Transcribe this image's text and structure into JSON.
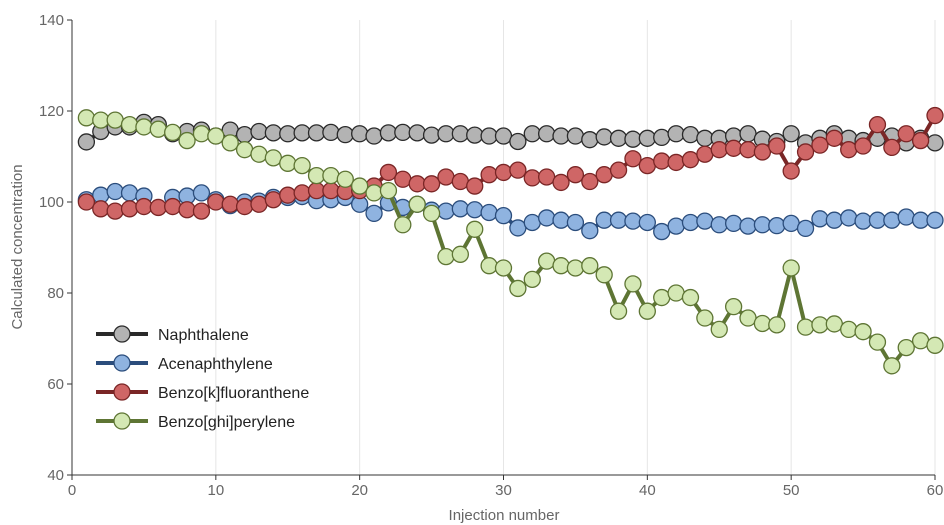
{
  "chart_data": {
    "type": "line",
    "title": "",
    "xlabel": "Injection number",
    "ylabel": "Calculated concentration",
    "xlim": [
      0,
      60
    ],
    "ylim": [
      40,
      140
    ],
    "x_ticks": [
      0,
      10,
      20,
      30,
      40,
      50,
      60
    ],
    "y_ticks": [
      40,
      60,
      80,
      100,
      120,
      140
    ],
    "grid": "vertical",
    "legend_position": "bottom-left",
    "x": [
      1,
      2,
      3,
      4,
      5,
      6,
      7,
      8,
      9,
      10,
      11,
      12,
      13,
      14,
      15,
      16,
      17,
      18,
      19,
      20,
      21,
      22,
      23,
      24,
      25,
      26,
      27,
      28,
      29,
      30,
      31,
      32,
      33,
      34,
      35,
      36,
      37,
      38,
      39,
      40,
      41,
      42,
      43,
      44,
      45,
      46,
      47,
      48,
      49,
      50,
      51,
      52,
      53,
      54,
      55,
      56,
      57,
      58,
      59,
      60
    ],
    "series": [
      {
        "name": "Naphthalene",
        "line_color": "#2a2a2a",
        "marker_fill": "#b3b3b3",
        "values": [
          113.2,
          115.5,
          116.5,
          116.5,
          117.5,
          117.0,
          115.0,
          115.5,
          115.8,
          114.5,
          115.8,
          114.8,
          115.5,
          115.2,
          115.0,
          115.2,
          115.2,
          115.3,
          114.8,
          115.0,
          114.5,
          115.2,
          115.3,
          115.2,
          114.7,
          115.0,
          115.0,
          114.7,
          114.5,
          114.5,
          113.3,
          115.0,
          115.0,
          114.5,
          114.5,
          113.7,
          114.3,
          114.0,
          113.8,
          114.0,
          114.2,
          115.0,
          114.8,
          114.0,
          114.0,
          114.5,
          115.0,
          113.8,
          113.3,
          115.0,
          113.0,
          114.0,
          115.0,
          114.0,
          113.5,
          114.0,
          114.5,
          113.0,
          114.0,
          113.0
        ]
      },
      {
        "name": "Acenaphthylene",
        "line_color": "#2b4d7c",
        "marker_fill": "#8fb3e0",
        "values": [
          100.5,
          101.5,
          102.3,
          102.0,
          101.3,
          null,
          101.0,
          101.3,
          102.0,
          100.5,
          99.2,
          100.0,
          100.2,
          101.0,
          101.0,
          101.2,
          100.3,
          100.5,
          101.0,
          99.5,
          97.5,
          99.8,
          98.8,
          99.5,
          98.2,
          98.0,
          98.5,
          98.3,
          97.7,
          97.0,
          94.3,
          95.5,
          96.5,
          96.0,
          95.5,
          93.7,
          96.0,
          96.0,
          95.8,
          95.5,
          93.5,
          94.7,
          95.5,
          95.8,
          95.0,
          95.3,
          94.7,
          95.0,
          94.8,
          95.3,
          94.2,
          96.3,
          96.0,
          96.5,
          95.8,
          96.0,
          96.0,
          96.7,
          96.0,
          96.0
        ]
      },
      {
        "name": "Benzo[k]fluoranthene",
        "line_color": "#7a2626",
        "marker_fill": "#cf6666",
        "values": [
          100.0,
          98.5,
          98.0,
          98.5,
          99.0,
          98.8,
          99.0,
          98.3,
          98.0,
          100.0,
          99.5,
          99.0,
          99.5,
          100.5,
          101.5,
          102.0,
          102.5,
          102.5,
          102.3,
          102.5,
          103.5,
          106.5,
          105.0,
          104.0,
          104.0,
          105.5,
          104.5,
          103.5,
          106.0,
          106.5,
          107.0,
          105.3,
          105.5,
          104.3,
          106.0,
          104.5,
          106.0,
          107.0,
          109.5,
          108.0,
          109.0,
          108.7,
          109.3,
          110.5,
          111.5,
          111.8,
          111.5,
          111.0,
          112.3,
          106.8,
          111.0,
          112.5,
          114.0,
          111.5,
          112.3,
          117.0,
          112.0,
          115.0,
          113.5,
          119.0
        ]
      },
      {
        "name": "Benzo[ghi]perylene",
        "line_color": "#5e7534",
        "marker_fill": "#d4e8b4",
        "values": [
          118.5,
          118.0,
          118.0,
          117.0,
          116.5,
          116.0,
          115.3,
          113.5,
          115.0,
          114.5,
          113.0,
          111.5,
          110.5,
          109.7,
          108.5,
          108.0,
          105.8,
          105.8,
          105.0,
          103.5,
          102.0,
          102.5,
          95.0,
          99.5,
          97.5,
          88.0,
          88.5,
          94.0,
          86.0,
          85.5,
          81.0,
          83.0,
          87.0,
          86.0,
          85.5,
          86.0,
          84.0,
          76.0,
          82.0,
          76.0,
          79.0,
          80.0,
          79.0,
          74.5,
          72.0,
          77.0,
          74.5,
          73.3,
          73.0,
          85.5,
          72.5,
          73.0,
          73.2,
          72.0,
          71.5,
          69.2,
          64.0,
          68.0,
          69.5,
          68.5
        ]
      }
    ]
  }
}
